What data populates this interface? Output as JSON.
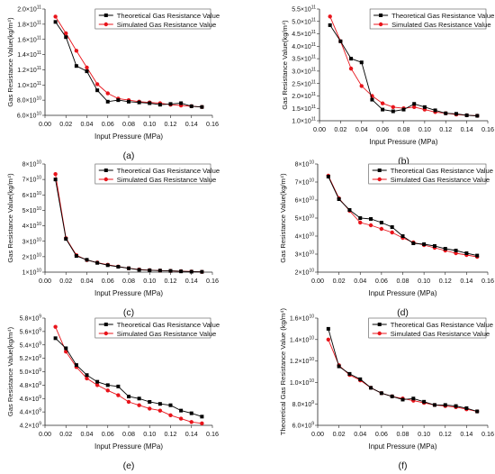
{
  "figure": {
    "legend_position": "top-right",
    "colors": {
      "theoretical": "#000000",
      "simulated": "#e8141b"
    }
  },
  "chart_data": [
    {
      "panel_label": "(a)",
      "type": "line",
      "xlabel": "Input Pressure (MPa)",
      "ylabel": "Gas Resistance Value(kg/m⁴)",
      "xlim": [
        0.0,
        0.16
      ],
      "ylim": [
        60000000000.0,
        200000000000.0
      ],
      "xticks": [
        "0.00",
        "0.02",
        "0.04",
        "0.06",
        "0.08",
        "0.10",
        "0.12",
        "0.14",
        "0.16"
      ],
      "yticks": [
        {
          "v": 60000000000.0,
          "m": "6.0×10",
          "e": "10"
        },
        {
          "v": 80000000000.0,
          "m": "8.0×10",
          "e": "10"
        },
        {
          "v": 100000000000.0,
          "m": "1.0×10",
          "e": "11"
        },
        {
          "v": 120000000000.0,
          "m": "1.2×10",
          "e": "11"
        },
        {
          "v": 140000000000.0,
          "m": "1.4×10",
          "e": "11"
        },
        {
          "v": 160000000000.0,
          "m": "1.6×10",
          "e": "11"
        },
        {
          "v": 180000000000.0,
          "m": "1.8×10",
          "e": "11"
        },
        {
          "v": 200000000000.0,
          "m": "2.0×10",
          "e": "11"
        }
      ],
      "x": [
        0.01,
        0.02,
        0.03,
        0.04,
        0.05,
        0.06,
        0.07,
        0.08,
        0.09,
        0.1,
        0.11,
        0.12,
        0.13,
        0.14,
        0.15
      ],
      "series": [
        {
          "name": "Theoretical Gas Resistance Value",
          "marker": "square",
          "values": [
            183000000000.0,
            163000000000.0,
            125000000000.0,
            118000000000.0,
            93000000000.0,
            78000000000.0,
            80000000000.0,
            78000000000.0,
            77000000000.0,
            76000000000.0,
            74000000000.0,
            75000000000.0,
            76000000000.0,
            72000000000.0,
            71000000000.0
          ]
        },
        {
          "name": "Simulated Gas Resistance Value",
          "marker": "circle",
          "values": [
            190000000000.0,
            168000000000.0,
            145000000000.0,
            123000000000.0,
            101000000000.0,
            89000000000.0,
            82000000000.0,
            80000000000.0,
            78000000000.0,
            77000000000.0,
            76000000000.0,
            74000000000.0,
            73000000000.0,
            72000000000.0,
            71000000000.0
          ]
        }
      ]
    },
    {
      "panel_label": "(b)",
      "type": "line",
      "xlabel": "Input Pressure (MPa)",
      "ylabel": "Gas Resistance Value(kg/m⁴)",
      "xlim": [
        0.0,
        0.16
      ],
      "ylim": [
        100000000000.0,
        550000000000.0
      ],
      "xticks": [
        "0.00",
        "0.02",
        "0.04",
        "0.06",
        "0.08",
        "0.10",
        "0.12",
        "0.14",
        "0.16"
      ],
      "yticks": [
        {
          "v": 100000000000.0,
          "m": "1.0×10",
          "e": "11"
        },
        {
          "v": 150000000000.0,
          "m": "1.5×10",
          "e": "11"
        },
        {
          "v": 200000000000.0,
          "m": "2.0×10",
          "e": "11"
        },
        {
          "v": 250000000000.0,
          "m": "2.5×10",
          "e": "11"
        },
        {
          "v": 300000000000.0,
          "m": "3.0×10",
          "e": "11"
        },
        {
          "v": 350000000000.0,
          "m": "3.5×10",
          "e": "11"
        },
        {
          "v": 400000000000.0,
          "m": "4.0×10",
          "e": "11"
        },
        {
          "v": 450000000000.0,
          "m": "4.5×10",
          "e": "11"
        },
        {
          "v": 500000000000.0,
          "m": "5.0×10",
          "e": "11"
        },
        {
          "v": 550000000000.0,
          "m": "5.5×10",
          "e": "11"
        }
      ],
      "x": [
        0.01,
        0.02,
        0.03,
        0.04,
        0.05,
        0.06,
        0.07,
        0.08,
        0.09,
        0.1,
        0.11,
        0.12,
        0.13,
        0.14,
        0.15
      ],
      "series": [
        {
          "name": "Theoretical Gas Resistance Value",
          "marker": "square",
          "values": [
            485000000000.0,
            420000000000.0,
            350000000000.0,
            335000000000.0,
            185000000000.0,
            145000000000.0,
            138000000000.0,
            145000000000.0,
            168000000000.0,
            155000000000.0,
            142000000000.0,
            130000000000.0,
            128000000000.0,
            122000000000.0,
            120000000000.0
          ]
        },
        {
          "name": "Simulated Gas Resistance Value",
          "marker": "circle",
          "values": [
            520000000000.0,
            420000000000.0,
            310000000000.0,
            240000000000.0,
            200000000000.0,
            170000000000.0,
            155000000000.0,
            150000000000.0,
            155000000000.0,
            145000000000.0,
            135000000000.0,
            130000000000.0,
            125000000000.0,
            122000000000.0,
            120000000000.0
          ]
        }
      ]
    },
    {
      "panel_label": "(c)",
      "type": "line",
      "xlabel": "Input Pressure (MPa)",
      "ylabel": "Gas Resistance Value(kg/m⁴)",
      "xlim": [
        0.0,
        0.16
      ],
      "ylim": [
        10000000000.0,
        80000000000.0
      ],
      "xticks": [
        "0.00",
        "0.02",
        "0.04",
        "0.06",
        "0.08",
        "0.10",
        "0.12",
        "0.14",
        "0.16"
      ],
      "yticks": [
        {
          "v": 10000000000.0,
          "m": "1×10",
          "e": "10"
        },
        {
          "v": 20000000000.0,
          "m": "2×10",
          "e": "10"
        },
        {
          "v": 30000000000.0,
          "m": "3×10",
          "e": "10"
        },
        {
          "v": 40000000000.0,
          "m": "4×10",
          "e": "10"
        },
        {
          "v": 50000000000.0,
          "m": "5×10",
          "e": "10"
        },
        {
          "v": 60000000000.0,
          "m": "6×10",
          "e": "10"
        },
        {
          "v": 70000000000.0,
          "m": "7×10",
          "e": "10"
        },
        {
          "v": 80000000000.0,
          "m": "8×10",
          "e": "10"
        }
      ],
      "x": [
        0.01,
        0.02,
        0.03,
        0.04,
        0.05,
        0.06,
        0.07,
        0.08,
        0.09,
        0.1,
        0.11,
        0.12,
        0.13,
        0.14,
        0.15
      ],
      "series": [
        {
          "name": "Theoretical Gas Resistance Value",
          "marker": "square",
          "values": [
            70000000000.0,
            31500000000.0,
            20500000000.0,
            18000000000.0,
            16000000000.0,
            14500000000.0,
            13500000000.0,
            12500000000.0,
            11500000000.0,
            11200000000.0,
            11000000000.0,
            10800000000.0,
            10500000000.0,
            10300000000.0,
            10200000000.0
          ]
        },
        {
          "name": "Simulated Gas Resistance Value",
          "marker": "circle",
          "values": [
            73500000000.0,
            32000000000.0,
            21000000000.0,
            17800000000.0,
            16200000000.0,
            14800000000.0,
            13600000000.0,
            12500000000.0,
            11700000000.0,
            11300000000.0,
            11000000000.0,
            10800000000.0,
            10600000000.0,
            10400000000.0,
            10200000000.0
          ]
        }
      ]
    },
    {
      "panel_label": "(d)",
      "type": "line",
      "xlabel": "Input Pressure (MPa)",
      "ylabel": "Gas Resistance Value(kg/m⁴)",
      "xlim": [
        0.0,
        0.16
      ],
      "ylim": [
        20000000000.0,
        80000000000.0
      ],
      "xticks": [
        "0.00",
        "0.02",
        "0.04",
        "0.06",
        "0.08",
        "0.10",
        "0.12",
        "0.14",
        "0.16"
      ],
      "yticks": [
        {
          "v": 20000000000.0,
          "m": "2×10",
          "e": "10"
        },
        {
          "v": 30000000000.0,
          "m": "3×10",
          "e": "10"
        },
        {
          "v": 40000000000.0,
          "m": "4×10",
          "e": "10"
        },
        {
          "v": 50000000000.0,
          "m": "5×10",
          "e": "10"
        },
        {
          "v": 60000000000.0,
          "m": "6×10",
          "e": "10"
        },
        {
          "v": 70000000000.0,
          "m": "7×10",
          "e": "10"
        },
        {
          "v": 80000000000.0,
          "m": "8×10",
          "e": "10"
        }
      ],
      "x": [
        0.01,
        0.02,
        0.03,
        0.04,
        0.05,
        0.06,
        0.07,
        0.08,
        0.09,
        0.1,
        0.11,
        0.12,
        0.13,
        0.14,
        0.15
      ],
      "series": [
        {
          "name": "Theoretical Gas Resistance Value",
          "marker": "square",
          "values": [
            73000000000.0,
            60500000000.0,
            54500000000.0,
            50000000000.0,
            49500000000.0,
            47500000000.0,
            45000000000.0,
            40000000000.0,
            36000000000.0,
            35500000000.0,
            34500000000.0,
            33000000000.0,
            32000000000.0,
            30500000000.0,
            29200000000.0
          ]
        },
        {
          "name": "Simulated Gas Resistance Value",
          "marker": "circle",
          "values": [
            73500000000.0,
            61000000000.0,
            54000000000.0,
            47500000000.0,
            46000000000.0,
            44000000000.0,
            42000000000.0,
            39000000000.0,
            36500000000.0,
            35000000000.0,
            33500000000.0,
            32000000000.0,
            30500000000.0,
            29500000000.0,
            28500000000.0
          ]
        }
      ]
    },
    {
      "panel_label": "(e)",
      "type": "line",
      "xlabel": "Input Pressure (MPa)",
      "ylabel": "Gas Resistance Value(kg/m⁴)",
      "xlim": [
        0.0,
        0.16
      ],
      "ylim": [
        4200000000.0,
        5800000000.0
      ],
      "xticks": [
        "0.00",
        "0.02",
        "0.04",
        "0.06",
        "0.08",
        "0.10",
        "0.12",
        "0.14",
        "0.16"
      ],
      "yticks": [
        {
          "v": 4200000000.0,
          "m": "4.2×10",
          "e": "9"
        },
        {
          "v": 4400000000.0,
          "m": "4.4×10",
          "e": "9"
        },
        {
          "v": 4600000000.0,
          "m": "4.6×10",
          "e": "9"
        },
        {
          "v": 4800000000.0,
          "m": "4.8×10",
          "e": "9"
        },
        {
          "v": 5000000000.0,
          "m": "5.0×10",
          "e": "9"
        },
        {
          "v": 5200000000.0,
          "m": "5.2×10",
          "e": "9"
        },
        {
          "v": 5400000000.0,
          "m": "5.4×10",
          "e": "9"
        },
        {
          "v": 5600000000.0,
          "m": "5.6×10",
          "e": "9"
        },
        {
          "v": 5800000000.0,
          "m": "5.8×10",
          "e": "9"
        }
      ],
      "x": [
        0.01,
        0.02,
        0.03,
        0.04,
        0.05,
        0.06,
        0.07,
        0.08,
        0.09,
        0.1,
        0.11,
        0.12,
        0.13,
        0.14,
        0.15
      ],
      "series": [
        {
          "name": "Theoretical Gas Resistance Value",
          "marker": "square",
          "values": [
            5500000000.0,
            5350000000.0,
            5100000000.0,
            4950000000.0,
            4850000000.0,
            4800000000.0,
            4780000000.0,
            4630000000.0,
            4600000000.0,
            4550000000.0,
            4520000000.0,
            4500000000.0,
            4420000000.0,
            4380000000.0,
            4330000000.0
          ]
        },
        {
          "name": "Simulated Gas Resistance Value",
          "marker": "circle",
          "values": [
            5670000000.0,
            5300000000.0,
            5070000000.0,
            4900000000.0,
            4800000000.0,
            4720000000.0,
            4650000000.0,
            4550000000.0,
            4500000000.0,
            4450000000.0,
            4420000000.0,
            4350000000.0,
            4300000000.0,
            4250000000.0,
            4230000000.0
          ]
        }
      ]
    },
    {
      "panel_label": "(f)",
      "type": "line",
      "xlabel": "Input Pressure (MPa)",
      "ylabel": "Theoretical Gas Resistance Value (kg/m⁴)",
      "xlim": [
        0.0,
        0.16
      ],
      "ylim": [
        6000000000.0,
        16000000000.0
      ],
      "xticks": [
        "0.00",
        "0.02",
        "0.04",
        "0.06",
        "0.08",
        "0.10",
        "0.12",
        "0.14",
        "0.16"
      ],
      "yticks": [
        {
          "v": 6000000000.0,
          "m": "6.0×10",
          "e": "9"
        },
        {
          "v": 8000000000.0,
          "m": "8.0×10",
          "e": "9"
        },
        {
          "v": 10000000000.0,
          "m": "1.0×10",
          "e": "10"
        },
        {
          "v": 12000000000.0,
          "m": "1.2×10",
          "e": "10"
        },
        {
          "v": 14000000000.0,
          "m": "1.4×10",
          "e": "10"
        },
        {
          "v": 16000000000.0,
          "m": "1.6×10",
          "e": "10"
        }
      ],
      "x": [
        0.01,
        0.02,
        0.03,
        0.04,
        0.05,
        0.06,
        0.07,
        0.08,
        0.09,
        0.1,
        0.11,
        0.12,
        0.13,
        0.14,
        0.15
      ],
      "series": [
        {
          "name": "Theoretical Gas Resistance Value",
          "marker": "square",
          "values": [
            15000000000.0,
            11500000000.0,
            10800000000.0,
            10300000000.0,
            9500000000.0,
            9000000000.0,
            8700000000.0,
            8400000000.0,
            8500000000.0,
            8200000000.0,
            7900000000.0,
            7900000000.0,
            7800000000.0,
            7600000000.0,
            7300000000.0
          ]
        },
        {
          "name": "Simulated Gas Resistance Value",
          "marker": "circle",
          "values": [
            14000000000.0,
            11600000000.0,
            10700000000.0,
            10200000000.0,
            9500000000.0,
            9000000000.0,
            8700000000.0,
            8500000000.0,
            8300000000.0,
            8100000000.0,
            7900000000.0,
            7800000000.0,
            7700000000.0,
            7500000000.0,
            7300000000.0
          ]
        }
      ]
    }
  ]
}
